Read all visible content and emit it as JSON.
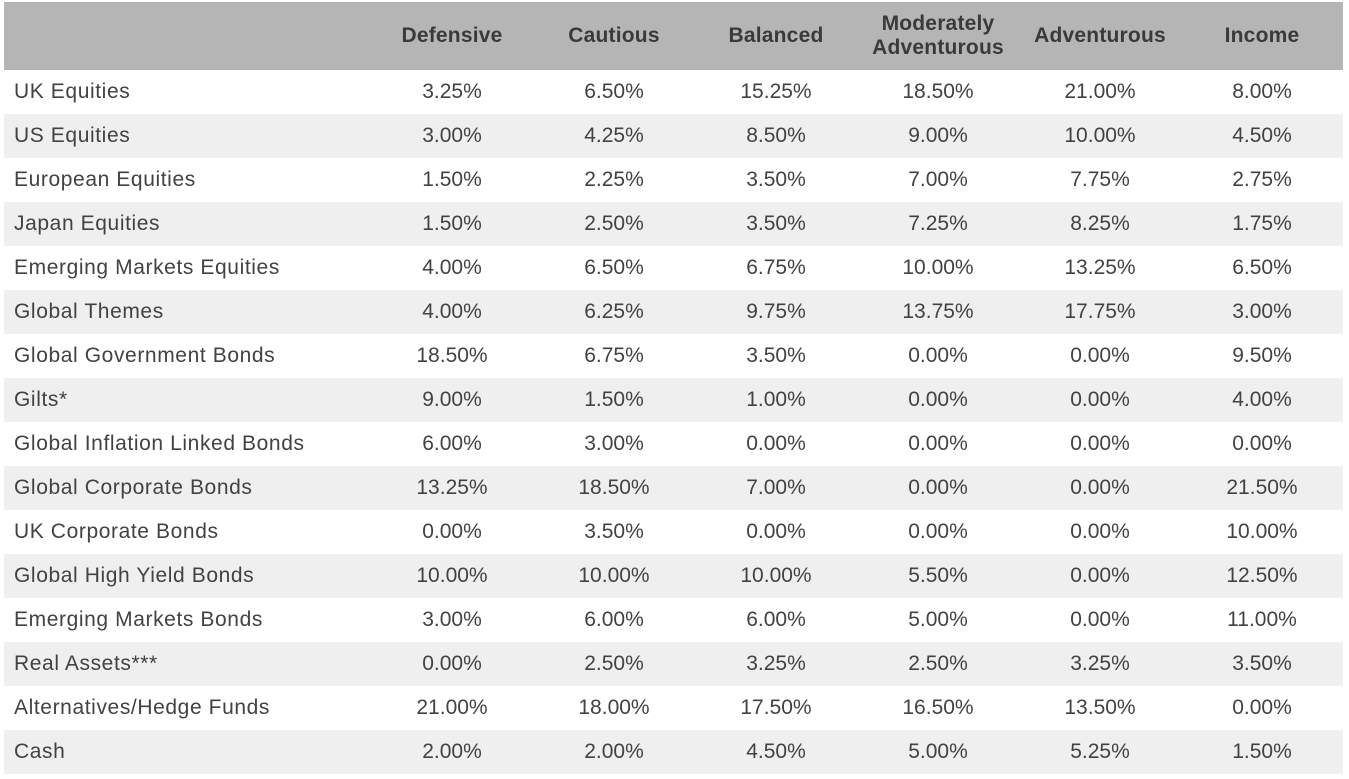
{
  "colors": {
    "header_bg": "#b5b5b5",
    "header_text": "#3a3a3a",
    "row_bg": "#ffffff",
    "row_alt_bg": "#efefef",
    "body_text": "#424242"
  },
  "chart_data": {
    "type": "table",
    "columns": [
      "",
      "Defensive",
      "Cautious",
      "Balanced",
      "Moderately Adventurous",
      "Adventurous",
      "Income"
    ],
    "rows": [
      {
        "label": "UK Equities",
        "values": [
          "3.25%",
          "6.50%",
          "15.25%",
          "18.50%",
          "21.00%",
          "8.00%"
        ]
      },
      {
        "label": "US Equities",
        "values": [
          "3.00%",
          "4.25%",
          "8.50%",
          "9.00%",
          "10.00%",
          "4.50%"
        ]
      },
      {
        "label": "European Equities",
        "values": [
          "1.50%",
          "2.25%",
          "3.50%",
          "7.00%",
          "7.75%",
          "2.75%"
        ]
      },
      {
        "label": "Japan Equities",
        "values": [
          "1.50%",
          "2.50%",
          "3.50%",
          "7.25%",
          "8.25%",
          "1.75%"
        ]
      },
      {
        "label": "Emerging Markets Equities",
        "values": [
          "4.00%",
          "6.50%",
          "6.75%",
          "10.00%",
          "13.25%",
          "6.50%"
        ]
      },
      {
        "label": "Global Themes",
        "values": [
          "4.00%",
          "6.25%",
          "9.75%",
          "13.75%",
          "17.75%",
          "3.00%"
        ]
      },
      {
        "label": "Global Government Bonds",
        "values": [
          "18.50%",
          "6.75%",
          "3.50%",
          "0.00%",
          "0.00%",
          "9.50%"
        ]
      },
      {
        "label": "Gilts*",
        "values": [
          "9.00%",
          "1.50%",
          "1.00%",
          "0.00%",
          "0.00%",
          "4.00%"
        ]
      },
      {
        "label": "Global Inflation Linked Bonds",
        "values": [
          "6.00%",
          "3.00%",
          "0.00%",
          "0.00%",
          "0.00%",
          "0.00%"
        ]
      },
      {
        "label": "Global Corporate Bonds",
        "values": [
          "13.25%",
          "18.50%",
          "7.00%",
          "0.00%",
          "0.00%",
          "21.50%"
        ]
      },
      {
        "label": "UK Corporate Bonds",
        "values": [
          "0.00%",
          "3.50%",
          "0.00%",
          "0.00%",
          "0.00%",
          "10.00%"
        ]
      },
      {
        "label": "Global High Yield Bonds",
        "values": [
          "10.00%",
          "10.00%",
          "10.00%",
          "5.50%",
          "0.00%",
          "12.50%"
        ]
      },
      {
        "label": "Emerging Markets Bonds",
        "values": [
          "3.00%",
          "6.00%",
          "6.00%",
          "5.00%",
          "0.00%",
          "11.00%"
        ]
      },
      {
        "label": "Real Assets***",
        "values": [
          "0.00%",
          "2.50%",
          "3.25%",
          "2.50%",
          "3.25%",
          "3.50%"
        ]
      },
      {
        "label": "Alternatives/Hedge Funds",
        "values": [
          "21.00%",
          "18.00%",
          "17.50%",
          "16.50%",
          "13.50%",
          "0.00%"
        ]
      },
      {
        "label": "Cash",
        "values": [
          "2.00%",
          "2.00%",
          "4.50%",
          "5.00%",
          "5.25%",
          "1.50%"
        ]
      }
    ]
  }
}
